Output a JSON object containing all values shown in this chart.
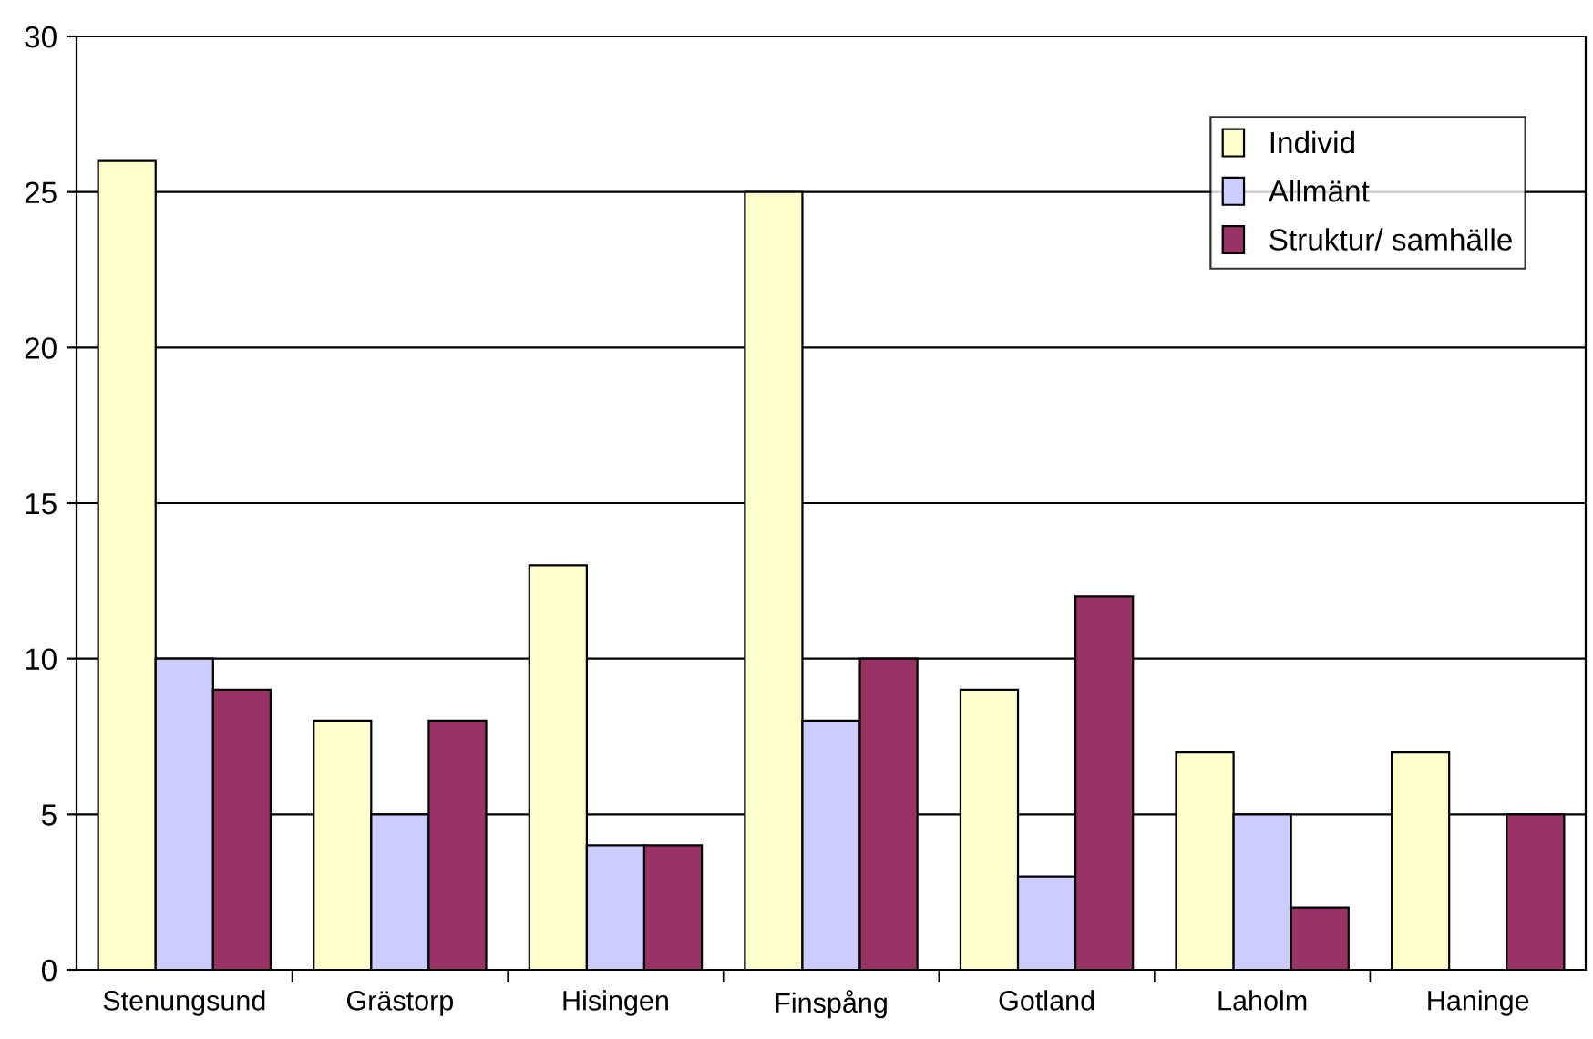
{
  "chart_data": {
    "type": "bar",
    "categories": [
      "Stenungsund",
      "Grästorp",
      "Hisingen",
      "Finspång",
      "Gotland",
      "Laholm",
      "Haninge"
    ],
    "series": [
      {
        "name": "Individ",
        "color": "#ffffcc",
        "values": [
          26,
          8,
          13,
          25,
          9,
          7,
          7
        ]
      },
      {
        "name": "Allmänt",
        "color": "#ccccff",
        "values": [
          10,
          5,
          4,
          8,
          3,
          5,
          null
        ]
      },
      {
        "name": "Struktur/ samhälle",
        "color": "#993366",
        "values": [
          9,
          8,
          4,
          10,
          12,
          2,
          5
        ]
      }
    ],
    "ylim": [
      0,
      30
    ],
    "yticks": [
      0,
      5,
      10,
      15,
      20,
      25,
      30
    ],
    "grid": "y",
    "legend": "top right"
  }
}
